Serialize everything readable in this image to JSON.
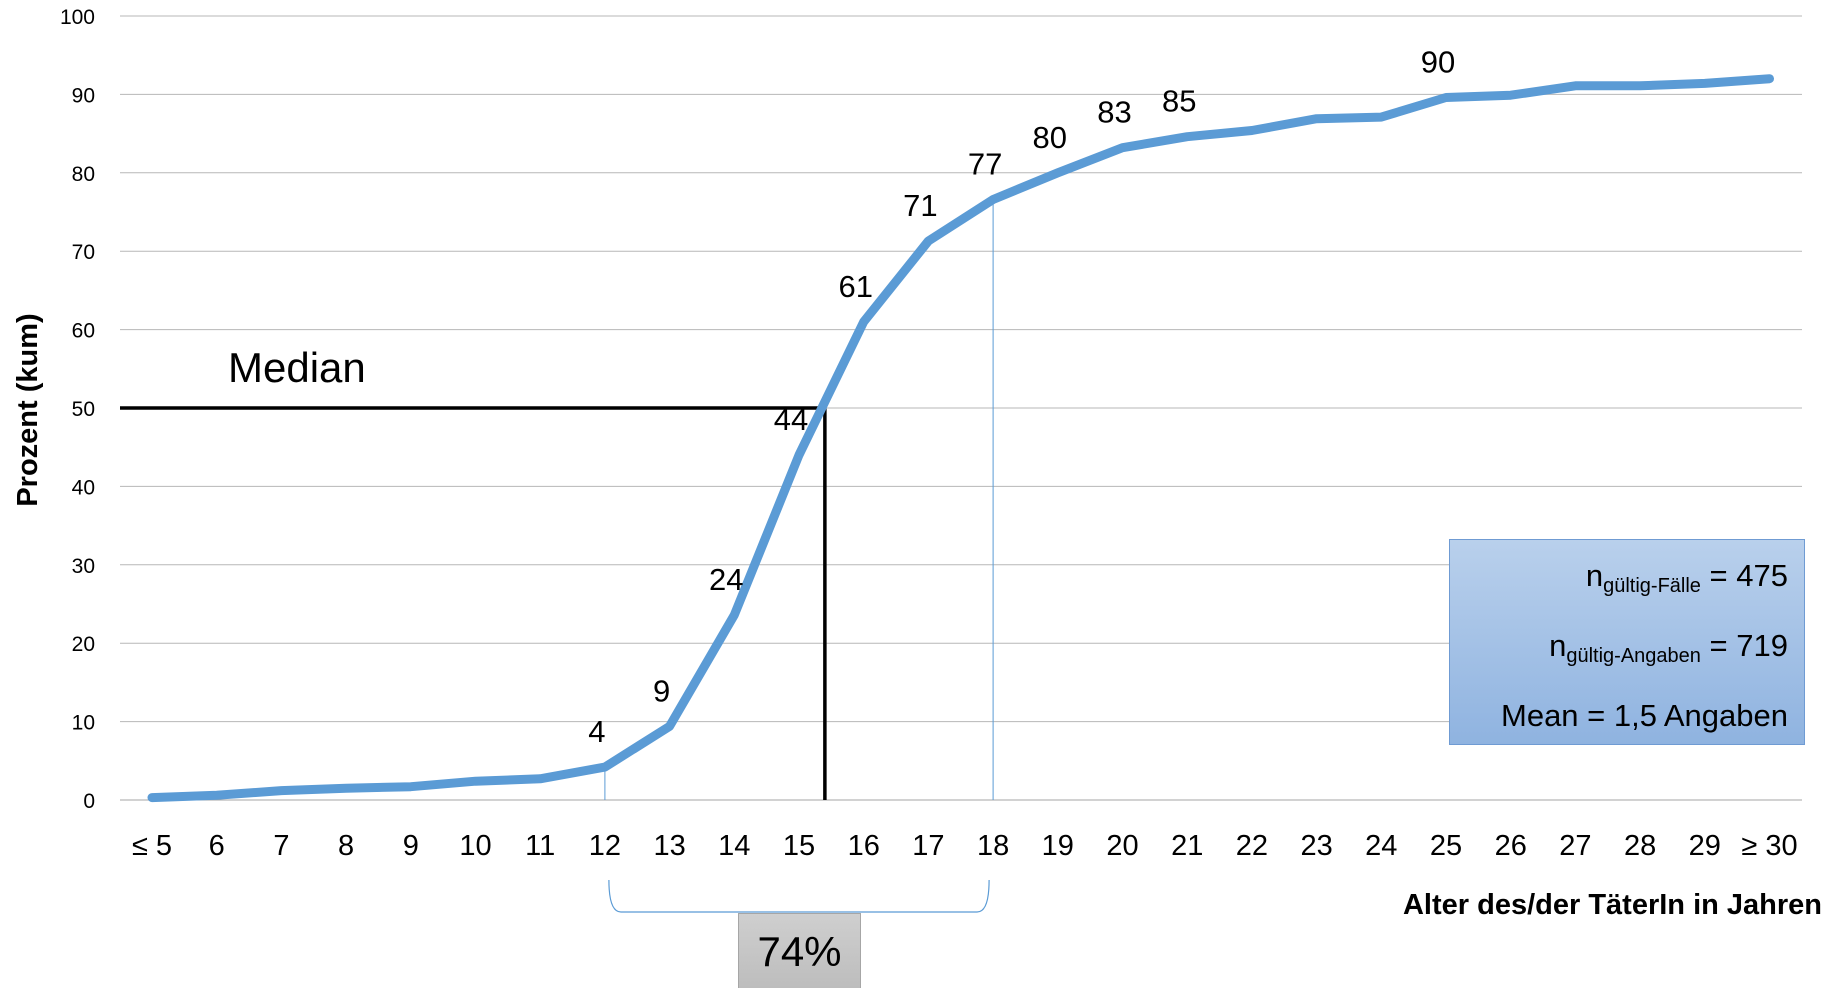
{
  "chart_data": {
    "type": "line",
    "categories": [
      "≤ 5",
      "6",
      "7",
      "8",
      "9",
      "10",
      "11",
      "12",
      "13",
      "14",
      "15",
      "16",
      "17",
      "18",
      "19",
      "20",
      "21",
      "22",
      "23",
      "24",
      "25",
      "26",
      "27",
      "28",
      "29",
      "≥ 30"
    ],
    "series": [
      {
        "values": [
          0.3,
          0.6,
          1.2,
          1.5,
          1.7,
          2.4,
          2.7,
          4.2,
          9.4,
          23.6,
          44,
          61,
          71.3,
          76.6,
          80,
          83.2,
          84.6,
          85.4,
          86.9,
          87.1,
          89.6,
          89.9,
          91.1,
          91.1,
          91.4,
          92
        ]
      }
    ],
    "data_labels": [
      {
        "index": 7,
        "text": "4"
      },
      {
        "index": 8,
        "text": "9"
      },
      {
        "index": 9,
        "text": "24"
      },
      {
        "index": 10,
        "text": "44"
      },
      {
        "index": 11,
        "text": "61"
      },
      {
        "index": 12,
        "text": "71"
      },
      {
        "index": 13,
        "text": "77"
      },
      {
        "index": 14,
        "text": "80"
      },
      {
        "index": 15,
        "text": "83"
      },
      {
        "index": 16,
        "text": "85"
      },
      {
        "index": 20,
        "text": "90"
      }
    ],
    "ylabel": "Prozent (kum)",
    "xlabel": "Alter des/der TäterIn in Jahren",
    "ylim": [
      0,
      100
    ],
    "yticks": [
      0,
      10,
      20,
      30,
      40,
      50,
      60,
      70,
      80,
      90,
      100
    ],
    "grid": true,
    "line_color": "#5b9bd5",
    "median": {
      "label": "Median",
      "y": 50,
      "x_category_position": 15.4
    },
    "range": {
      "from": "12",
      "to": "18",
      "label": "74%"
    },
    "info_box": {
      "n1_symbol": "n",
      "n1_sub": "gültig-Fälle",
      "n1_value": "= 475",
      "n2_symbol": "n",
      "n2_sub": "gültig-Angaben",
      "n2_value": "= 719",
      "mean": "Mean = 1,5 Angaben"
    }
  }
}
